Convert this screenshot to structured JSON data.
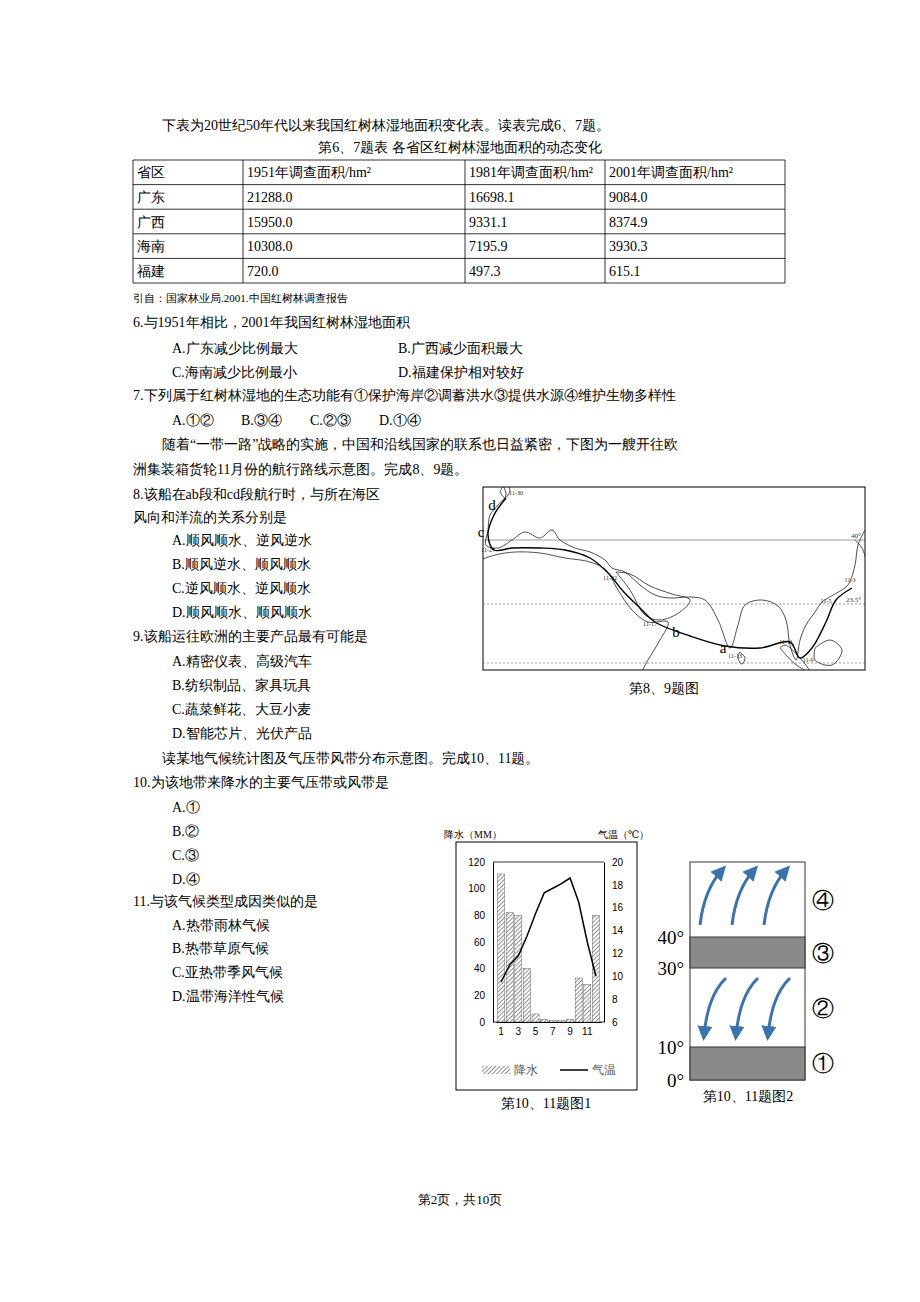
{
  "intro_6_7": "下表为20世纪50年代以来我国红树林湿地面积变化表。读表完成6、7题。",
  "table": {
    "caption": "第6、7题表 各省区红树林湿地面积的动态变化",
    "header": [
      "省区",
      "1951年调查面积/hm²",
      "1981年调查面积/hm²",
      "2001年调查面积/hm²"
    ],
    "rows": [
      [
        "广东",
        "21288.0",
        "16698.1",
        "9084.0"
      ],
      [
        "广西",
        "15950.0",
        "9331.1",
        "8374.9"
      ],
      [
        "海南",
        "10308.0",
        "7195.9",
        "3930.3"
      ],
      [
        "福建",
        "720.0",
        "497.3",
        "615.1"
      ]
    ],
    "source": "引自：国家林业局.2001.中国红树林调查报告"
  },
  "questions": [
    {
      "stem": [
        "6.与1951年相比，2001年我国红树林湿地面积"
      ],
      "options": [
        "A.广东减少比例最大",
        "B.广西减少面积最大",
        "C.海南减少比例最小",
        "D.福建保护相对较好"
      ]
    },
    {
      "stem": [
        "7.下列属于红树林湿地的生态功能有①保护海岸②调蓄洪水③提供水源④维护生物多样性"
      ],
      "options": [
        "A.①②",
        "B.③④",
        "C.②③",
        "D.①④"
      ]
    },
    {
      "stem": [
        "8.该船在ab段和cd段航行时，与所在海区",
        "风向和洋流的关系分别是"
      ],
      "options": [
        "A.顺风顺水、逆风逆水",
        "B.顺风逆水、顺风顺水",
        "C.逆风顺水、逆风顺水",
        "D.顺风顺水、顺风顺水"
      ]
    },
    {
      "stem": [
        "9.该船运往欧洲的主要产品最有可能是"
      ],
      "options": [
        "A.精密仪表、高级汽车",
        "B.纺织制品、家具玩具",
        "C.蔬菜鲜花、大豆小麦",
        "D.智能芯片、光伏产品"
      ]
    },
    {
      "stem": [
        "10.为该地带来降水的主要气压带或风带是"
      ],
      "options": [
        "A.①",
        "B.②",
        "C.③",
        "D.④"
      ]
    },
    {
      "stem": [
        "11.与该气候类型成因类似的是"
      ],
      "options": [
        "A.热带雨林气候",
        "B.热带草原气候",
        "C.亚热带季风气候",
        "D.温带海洋性气候"
      ]
    }
  ],
  "intro_8_9": [
    "随着“一带一路”战略的实施，中国和沿线国家的联系也日益紧密，下图为一艘开往欧",
    "洲集装箱货轮11月份的航行路线示意图。完成8、9题。"
  ],
  "map": {
    "caption": "第8、9题图",
    "point_labels": [
      "a",
      "b",
      "c",
      "d"
    ],
    "date_labels": [
      "11-30",
      "11-27",
      "11-22",
      "11-17",
      "11-13",
      "11-11",
      "11-9",
      "11-5",
      "11-3"
    ],
    "lat_labels": [
      "40°",
      "23.5°"
    ]
  },
  "intro_10_11": "读某地气候统计图及气压带风带分布示意图。完成10、11题。",
  "chart_data": {
    "type": "bar_line",
    "categories": [
      "1",
      null,
      "3",
      null,
      "5",
      null,
      "7",
      null,
      "9",
      null,
      "11",
      null
    ],
    "series": [
      {
        "name": "降水",
        "type": "bar",
        "color": "#444444",
        "values": [
          111,
          82,
          80,
          40,
          6,
          2,
          1,
          1,
          2,
          33,
          28,
          80
        ]
      },
      {
        "name": "气温",
        "type": "line",
        "axis": "y2",
        "color": "#000000",
        "values": [
          9.5,
          11,
          11.8,
          13.5,
          15.5,
          17.3,
          17.7,
          18.1,
          18.6,
          16.5,
          13,
          10
        ]
      }
    ],
    "y_label": "降水（MM）",
    "y2_label": "气温（℃）",
    "ylim": [
      0,
      120
    ],
    "yticks": [
      0,
      20,
      40,
      60,
      80,
      100,
      120
    ],
    "y2lim": [
      6,
      20
    ],
    "y2ticks": [
      6,
      8,
      10,
      12,
      14,
      16,
      18,
      20
    ],
    "legend": "bottom"
  },
  "figure_captions": [
    "第10、11题图1",
    "第10、11题图2"
  ],
  "belt_diagram": {
    "lat_labels": [
      "40°",
      "30°",
      "10°",
      "0°"
    ],
    "belt_labels": [
      "④",
      "③",
      "②",
      "①"
    ]
  },
  "footer": "第2页，共10页"
}
